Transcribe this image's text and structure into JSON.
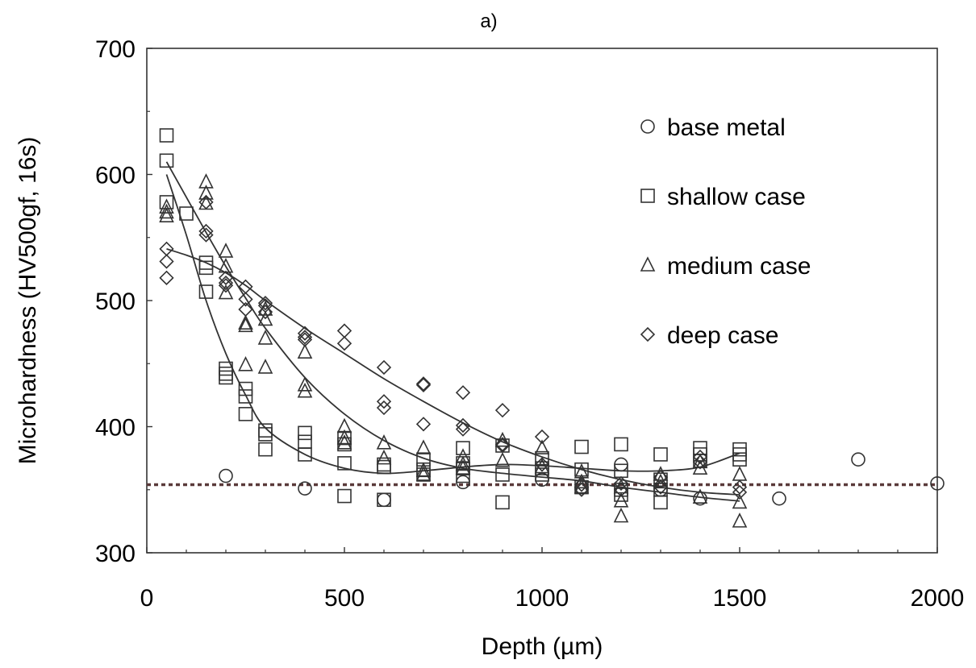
{
  "chart_data": {
    "type": "scatter",
    "title": "a)",
    "xlabel": "Depth (µm)",
    "ylabel": "Microhardness (HV500gf, 16s)",
    "xlim": [
      0,
      2000
    ],
    "ylim": [
      300,
      700
    ],
    "x_ticks": [
      0,
      500,
      1000,
      1500,
      2000
    ],
    "y_ticks": [
      300,
      400,
      500,
      600,
      700
    ],
    "grid": false,
    "legend_position": "top-right",
    "reference_line": {
      "y": 354,
      "style": "dotted",
      "color": "#5a3a3a"
    },
    "series": [
      {
        "name": "base metal",
        "marker": "circle-icon",
        "points": [
          [
            200,
            361
          ],
          [
            400,
            351
          ],
          [
            600,
            342
          ],
          [
            800,
            356
          ],
          [
            1000,
            358
          ],
          [
            1100,
            352
          ],
          [
            1200,
            370
          ],
          [
            1300,
            350
          ],
          [
            1400,
            343
          ],
          [
            1600,
            343
          ],
          [
            1800,
            374
          ],
          [
            2000,
            355
          ]
        ]
      },
      {
        "name": "shallow case",
        "marker": "square-icon",
        "points": [
          [
            50,
            631
          ],
          [
            50,
            611
          ],
          [
            50,
            578
          ],
          [
            100,
            569
          ],
          [
            150,
            530
          ],
          [
            150,
            526
          ],
          [
            150,
            507
          ],
          [
            200,
            446
          ],
          [
            200,
            442
          ],
          [
            200,
            439
          ],
          [
            250,
            430
          ],
          [
            250,
            424
          ],
          [
            250,
            410
          ],
          [
            300,
            397
          ],
          [
            300,
            394
          ],
          [
            300,
            382
          ],
          [
            400,
            395
          ],
          [
            400,
            388
          ],
          [
            400,
            378
          ],
          [
            500,
            391
          ],
          [
            500,
            386
          ],
          [
            500,
            371
          ],
          [
            500,
            345
          ],
          [
            600,
            370
          ],
          [
            600,
            368
          ],
          [
            600,
            342
          ],
          [
            700,
            374
          ],
          [
            700,
            366
          ],
          [
            700,
            362
          ],
          [
            800,
            383
          ],
          [
            800,
            371
          ],
          [
            800,
            367
          ],
          [
            800,
            361
          ],
          [
            900,
            385
          ],
          [
            900,
            362
          ],
          [
            900,
            340
          ],
          [
            1000,
            375
          ],
          [
            1000,
            367
          ],
          [
            1000,
            362
          ],
          [
            1100,
            384
          ],
          [
            1100,
            366
          ],
          [
            1100,
            352
          ],
          [
            1200,
            386
          ],
          [
            1200,
            365
          ],
          [
            1200,
            350
          ],
          [
            1200,
            346
          ],
          [
            1300,
            378
          ],
          [
            1300,
            358
          ],
          [
            1300,
            350
          ],
          [
            1300,
            340
          ],
          [
            1400,
            383
          ],
          [
            1400,
            378
          ],
          [
            1400,
            373
          ],
          [
            1500,
            382
          ],
          [
            1500,
            378
          ],
          [
            1500,
            374
          ]
        ]
      },
      {
        "name": "medium case",
        "marker": "triangle-icon",
        "points": [
          [
            50,
            574
          ],
          [
            50,
            570
          ],
          [
            50,
            567
          ],
          [
            150,
            594
          ],
          [
            150,
            585
          ],
          [
            150,
            577
          ],
          [
            200,
            539
          ],
          [
            200,
            527
          ],
          [
            200,
            506
          ],
          [
            250,
            482
          ],
          [
            250,
            480
          ],
          [
            250,
            449
          ],
          [
            300,
            493
          ],
          [
            300,
            485
          ],
          [
            300,
            470
          ],
          [
            300,
            447
          ],
          [
            400,
            433
          ],
          [
            400,
            428
          ],
          [
            400,
            459
          ],
          [
            500,
            400
          ],
          [
            500,
            391
          ],
          [
            500,
            387
          ],
          [
            600,
            387
          ],
          [
            600,
            375
          ],
          [
            700,
            383
          ],
          [
            700,
            365
          ],
          [
            700,
            362
          ],
          [
            800,
            376
          ],
          [
            800,
            370
          ],
          [
            800,
            367
          ],
          [
            900,
            389
          ],
          [
            900,
            373
          ],
          [
            1000,
            383
          ],
          [
            1000,
            368
          ],
          [
            1100,
            364
          ],
          [
            1100,
            356
          ],
          [
            1100,
            352
          ],
          [
            1200,
            352
          ],
          [
            1200,
            341
          ],
          [
            1200,
            329
          ],
          [
            1300,
            362
          ],
          [
            1300,
            356
          ],
          [
            1400,
            372
          ],
          [
            1400,
            367
          ],
          [
            1400,
            344
          ],
          [
            1500,
            362
          ],
          [
            1500,
            340
          ],
          [
            1500,
            325
          ]
        ]
      },
      {
        "name": "deep case",
        "marker": "diamond-icon",
        "points": [
          [
            50,
            541
          ],
          [
            50,
            531
          ],
          [
            50,
            518
          ],
          [
            150,
            578
          ],
          [
            150,
            555
          ],
          [
            150,
            552
          ],
          [
            200,
            518
          ],
          [
            200,
            514
          ],
          [
            200,
            512
          ],
          [
            250,
            511
          ],
          [
            250,
            501
          ],
          [
            250,
            493
          ],
          [
            300,
            498
          ],
          [
            300,
            496
          ],
          [
            300,
            491
          ],
          [
            400,
            474
          ],
          [
            400,
            471
          ],
          [
            400,
            469
          ],
          [
            500,
            476
          ],
          [
            500,
            466
          ],
          [
            600,
            447
          ],
          [
            600,
            420
          ],
          [
            600,
            415
          ],
          [
            700,
            434
          ],
          [
            700,
            433
          ],
          [
            700,
            402
          ],
          [
            800,
            427
          ],
          [
            800,
            401
          ],
          [
            800,
            398
          ],
          [
            900,
            413
          ],
          [
            900,
            386
          ],
          [
            900,
            385
          ],
          [
            1000,
            392
          ],
          [
            1000,
            370
          ],
          [
            1100,
            354
          ],
          [
            1100,
            350
          ],
          [
            1200,
            355
          ],
          [
            1200,
            350
          ],
          [
            1300,
            360
          ],
          [
            1300,
            352
          ],
          [
            1400,
            376
          ],
          [
            1400,
            372
          ],
          [
            1500,
            352
          ],
          [
            1500,
            348
          ]
        ]
      }
    ],
    "fit_curves": [
      {
        "series": "shallow case",
        "points": [
          [
            50,
            600
          ],
          [
            100,
            552
          ],
          [
            150,
            500
          ],
          [
            200,
            458
          ],
          [
            250,
            425
          ],
          [
            300,
            399
          ],
          [
            400,
            378
          ],
          [
            500,
            367
          ],
          [
            600,
            363
          ],
          [
            700,
            365
          ],
          [
            800,
            368
          ],
          [
            900,
            370
          ],
          [
            1000,
            369
          ],
          [
            1100,
            367
          ],
          [
            1200,
            365
          ],
          [
            1300,
            365
          ],
          [
            1400,
            368
          ],
          [
            1500,
            379
          ]
        ]
      },
      {
        "series": "medium case",
        "points": [
          [
            50,
            610
          ],
          [
            100,
            582
          ],
          [
            150,
            554
          ],
          [
            200,
            527
          ],
          [
            250,
            502
          ],
          [
            300,
            478
          ],
          [
            400,
            439
          ],
          [
            500,
            410
          ],
          [
            600,
            389
          ],
          [
            700,
            375
          ],
          [
            800,
            367
          ],
          [
            900,
            363
          ],
          [
            1000,
            360
          ],
          [
            1100,
            357
          ],
          [
            1200,
            352
          ],
          [
            1300,
            348
          ],
          [
            1400,
            344
          ],
          [
            1500,
            341
          ]
        ]
      },
      {
        "series": "deep case",
        "points": [
          [
            50,
            541
          ],
          [
            100,
            536
          ],
          [
            150,
            530
          ],
          [
            200,
            522
          ],
          [
            250,
            512
          ],
          [
            300,
            500
          ],
          [
            400,
            478
          ],
          [
            500,
            458
          ],
          [
            600,
            438
          ],
          [
            700,
            420
          ],
          [
            800,
            403
          ],
          [
            900,
            388
          ],
          [
            1000,
            376
          ],
          [
            1100,
            366
          ],
          [
            1200,
            358
          ],
          [
            1300,
            352
          ],
          [
            1400,
            348
          ],
          [
            1500,
            346
          ]
        ]
      }
    ]
  }
}
